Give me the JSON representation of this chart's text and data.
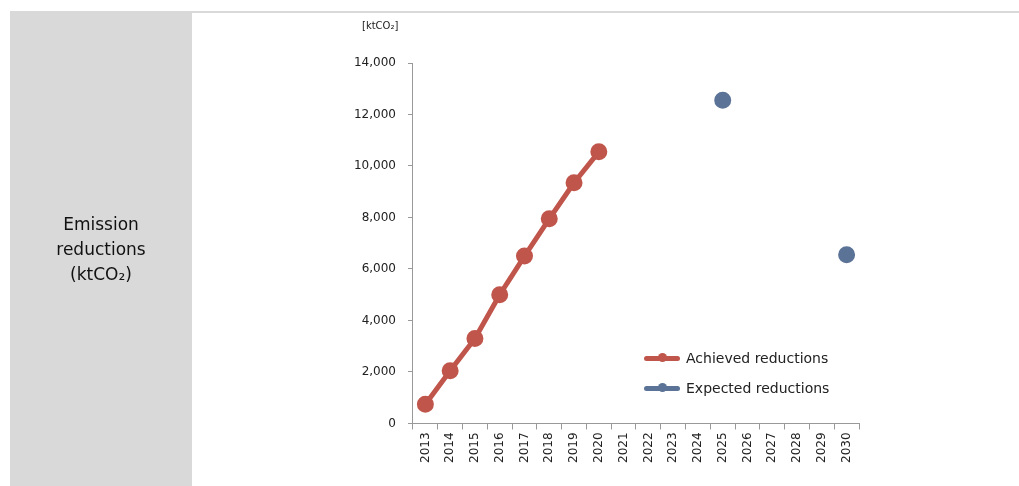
{
  "chart_data": {
    "type": "line",
    "title": "Emission reductions (ktCO₂)",
    "ylabel": "[ktCO₂]",
    "categories": [
      "2013",
      "2014",
      "2015",
      "2016",
      "2017",
      "2018",
      "2019",
      "2020",
      "2021",
      "2022",
      "2023",
      "2024",
      "2025",
      "2026",
      "2027",
      "2028",
      "2029",
      "2030"
    ],
    "series": [
      {
        "name": "Achieved reductions",
        "color": "#c0564b",
        "values": [
          750,
          2050,
          3300,
          5000,
          6500,
          7950,
          9350,
          10550,
          null,
          null,
          null,
          null,
          null,
          null,
          null,
          null,
          null,
          null
        ]
      },
      {
        "name": "Expected reductions",
        "type": "scatter",
        "color": "#5b7396",
        "values": [
          null,
          null,
          null,
          null,
          null,
          null,
          null,
          null,
          null,
          null,
          null,
          null,
          12550,
          null,
          null,
          null,
          null,
          6550
        ]
      }
    ],
    "ylim": [
      0,
      14000
    ],
    "yticks": [
      {
        "value": 0,
        "label": "0"
      },
      {
        "value": 2000,
        "label": "2,000"
      },
      {
        "value": 4000,
        "label": "4,000"
      },
      {
        "value": 6000,
        "label": "6,000"
      },
      {
        "value": 8000,
        "label": "8,000"
      },
      {
        "value": 10000,
        "label": "10,000"
      },
      {
        "value": 12000,
        "label": "12,000"
      },
      {
        "value": 14000,
        "label": "14,000"
      }
    ],
    "grid": false,
    "legend": "bottom right",
    "marker": "circle",
    "line_style": "solid"
  }
}
